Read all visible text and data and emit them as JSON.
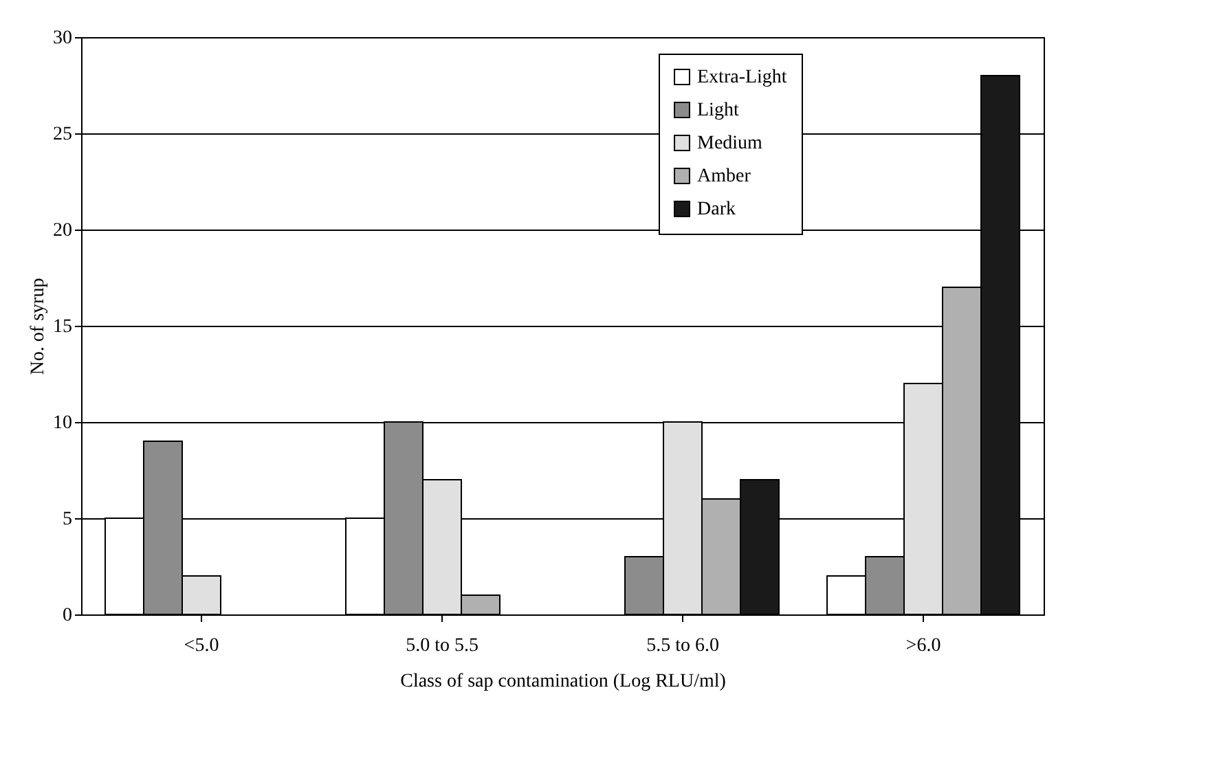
{
  "chart_data": {
    "type": "bar",
    "xlabel": "Class of sap contamination (Log RLU/ml)",
    "ylabel": "No. of syrup",
    "categories": [
      "<5.0",
      "5.0 to 5.5",
      "5.5 to 6.0",
      ">6.0"
    ],
    "series": [
      {
        "name": "Extra-Light",
        "color": "#ffffff",
        "values": [
          5,
          5,
          0,
          2
        ]
      },
      {
        "name": "Light",
        "color": "#8c8c8c",
        "values": [
          9,
          10,
          3,
          3
        ]
      },
      {
        "name": "Medium",
        "color": "#e0e0e0",
        "values": [
          2,
          7,
          10,
          12
        ]
      },
      {
        "name": "Amber",
        "color": "#b0b0b0",
        "values": [
          0,
          1,
          6,
          17
        ]
      },
      {
        "name": "Dark",
        "color": "#1a1a1a",
        "values": [
          0,
          0,
          7,
          28
        ]
      }
    ],
    "ylim": [
      0,
      30
    ],
    "yticks": [
      0,
      5,
      10,
      15,
      20,
      25,
      30
    ],
    "grid": "y",
    "legend": "top right"
  }
}
